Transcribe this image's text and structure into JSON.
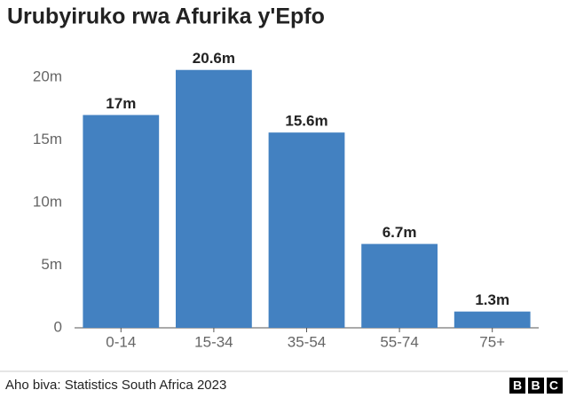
{
  "chart_data": {
    "type": "bar",
    "title": "Urubyiruko rwa Afurika y'Epfo",
    "categories": [
      "0-14",
      "15-34",
      "35-54",
      "55-74",
      "75+"
    ],
    "values": [
      17,
      20.6,
      15.6,
      6.7,
      1.3
    ],
    "value_labels": [
      "17m",
      "20.6m",
      "15.6m",
      "6.7m",
      "1.3m"
    ],
    "color": "#4381c1",
    "ylim": [
      0,
      22
    ],
    "yticks": [
      0,
      {
        "value": 5,
        "label": "5m"
      },
      {
        "value": 10,
        "label": "10m"
      },
      {
        "value": 15,
        "label": "15m"
      },
      {
        "value": 20,
        "label": "20m"
      }
    ],
    "grid": false,
    "source": "Aho biva: Statistics South Africa 2023",
    "logo": "BBC"
  }
}
